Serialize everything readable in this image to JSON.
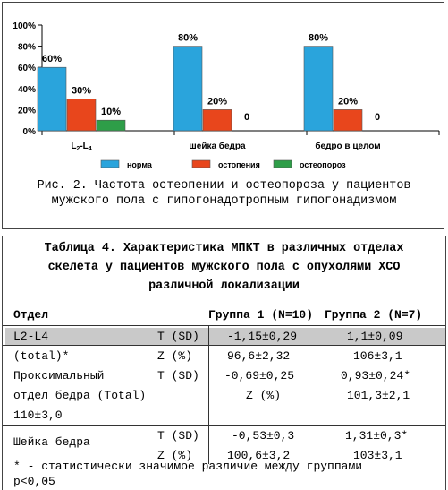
{
  "figure": {
    "caption_line1": "Рис. 2. Частота остеопении и остеопороза у пациентов",
    "caption_line2": "мужского пола с гипогонадотропным гипогонадизмом"
  },
  "chart_data": {
    "type": "bar",
    "categories": [
      "L2-L4",
      "шейка бедра",
      "бедро в целом"
    ],
    "series": [
      {
        "name": "норма",
        "values": [
          60,
          80,
          80
        ],
        "color": "#2aa4dc",
        "labels": [
          "60%",
          "80%",
          "80%"
        ]
      },
      {
        "name": "остопения",
        "values": [
          30,
          20,
          20
        ],
        "color": "#e8461c",
        "labels": [
          "30%",
          "20%",
          "20%"
        ]
      },
      {
        "name": "остеопороз",
        "values": [
          10,
          0,
          0
        ],
        "color": "#2e9e48",
        "labels": [
          "10%",
          "0",
          "0"
        ]
      }
    ],
    "yticks": [
      "0%",
      "20%",
      "40%",
      "60%",
      "80%",
      "100%"
    ],
    "ylim": [
      0,
      100
    ],
    "grid": false,
    "legend_position": "bottom"
  },
  "table": {
    "title_line1": "Таблица 4. Характеристика МПКТ в различных отделах",
    "title_line2": "скелета у пациентов мужского пола с опухолями ХСО",
    "title_line3": "различной локализации",
    "header": {
      "col1": "Отдел",
      "col2": "Группа 1 (N=10)",
      "col3": "Группа 2 (N=7)"
    },
    "rows": [
      {
        "name": "L2-L4",
        "metric": "T (SD)",
        "g1": "-1,15±0,29",
        "g2": "1,1±0,09"
      },
      {
        "name": "(total)*",
        "metric": "Z (%)",
        "g1": "96,6±2,32",
        "g2": "106±3,1"
      },
      {
        "name": "Проксимальный",
        "metric": "T (SD)",
        "g1": "-0,69±0,25",
        "g2": "0,93±0,24*"
      },
      {
        "name": "отдел бедра (Total)",
        "metric": "Z (%)",
        "g2": "101,3±2,1"
      },
      {
        "name": "110±3,0"
      },
      {
        "name": "Шейка бедра",
        "metric": "T (SD)",
        "g1": "-0,53±0,3",
        "g2": "1,31±0,3*"
      },
      {
        "metric": "Z (%)",
        "g1": "100,6±3,2",
        "g2": "103±3,1"
      }
    ],
    "footnote_line1": "* - статистически значимое различие между группами",
    "footnote_line2": "p<0,05"
  }
}
